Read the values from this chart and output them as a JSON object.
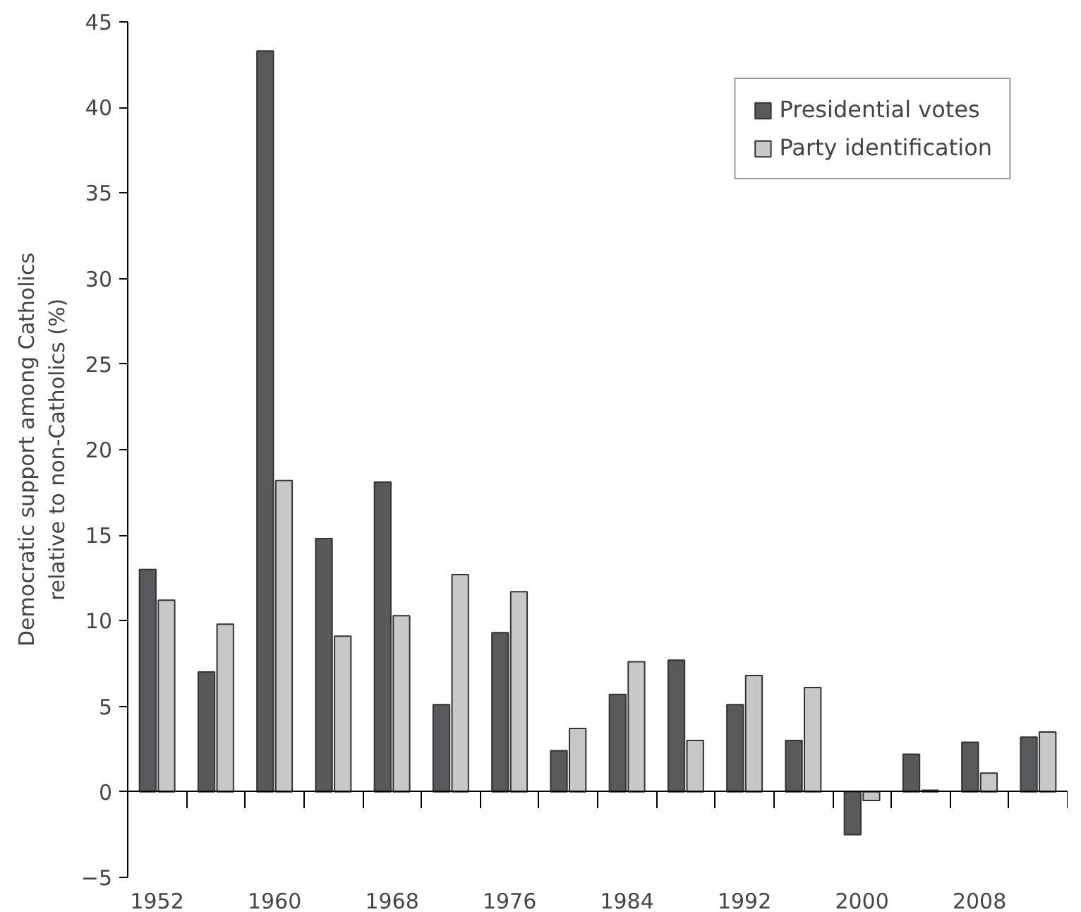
{
  "chart_data": {
    "type": "bar",
    "ylabel": "Democratic support among Catholics\nrelative to non-Catholics (%)",
    "categories": [
      "1952",
      null,
      "1960",
      null,
      "1968",
      null,
      "1976",
      null,
      "1984",
      null,
      "1992",
      null,
      "2000",
      null,
      "2008",
      null
    ],
    "series": [
      {
        "name": "Presidential votes",
        "color": "#58595b",
        "values": [
          13.0,
          7.0,
          43.3,
          14.8,
          18.1,
          5.1,
          9.3,
          2.4,
          5.7,
          7.7,
          5.1,
          3.0,
          -2.5,
          2.2,
          2.9,
          3.2
        ]
      },
      {
        "name": "Party identification",
        "color": "#c8c8c8",
        "values": [
          11.2,
          9.8,
          18.2,
          9.1,
          10.3,
          12.7,
          11.7,
          3.7,
          7.6,
          3.0,
          6.8,
          6.1,
          -0.5,
          0.1,
          1.1,
          3.5
        ]
      }
    ],
    "ylim": [
      -5,
      45
    ],
    "yticks": [
      {
        "value": -5,
        "label": "−5"
      },
      0,
      5,
      10,
      15,
      20,
      25,
      30,
      35,
      40,
      45
    ],
    "legend": "top right"
  }
}
